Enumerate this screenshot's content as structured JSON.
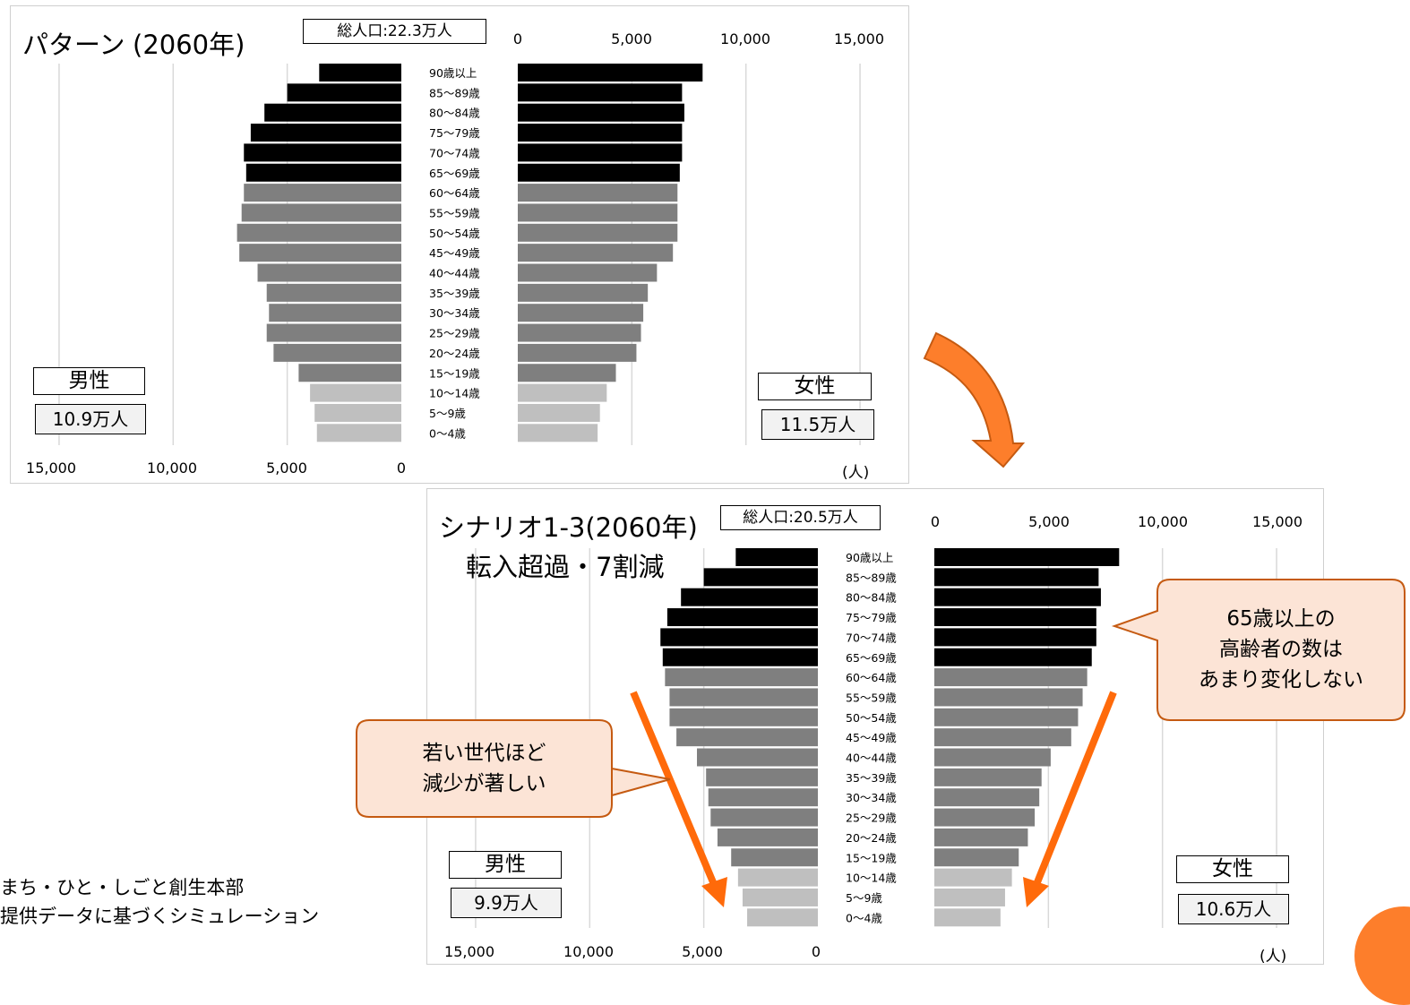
{
  "top_panel": {
    "title_main": "パターン",
    "title_year": "(2060年)",
    "total_population": "総人口:22.3万人",
    "male_label": "男性",
    "male_total": "10.9万人",
    "female_label": "女性",
    "female_total": "11.5万人",
    "unit": "(人)",
    "top_ticks": [
      "0",
      "5,000",
      "10,000",
      "15,000"
    ],
    "bottom_ticks": [
      "15,000",
      "10,000",
      "5,000",
      "0"
    ]
  },
  "bottom_panel": {
    "title_main": "シナリオ1-3(2060年)",
    "subtitle": "転入超過・7割減",
    "total_population": "総人口:20.5万人",
    "male_label": "男性",
    "male_total": "9.9万人",
    "female_label": "女性",
    "female_total": "10.6万人",
    "unit": "(人)",
    "top_ticks": [
      "0",
      "5,000",
      "10,000",
      "15,000"
    ],
    "bottom_ticks": [
      "15,000",
      "10,000",
      "5,000",
      "0"
    ]
  },
  "callouts": {
    "young": [
      "若い世代ほど",
      "減少が著しい"
    ],
    "elderly": [
      "65歳以上の",
      "高齢者の数は",
      "あまり変化しない"
    ]
  },
  "source_note": [
    "まち・ひと・しごと創生本部",
    "提供データに基づくシミュレーション"
  ],
  "colors": {
    "elderly_bar": "#000000",
    "working_bar": "#7f7f7f",
    "child_bar": "#bfbfbf",
    "accent_orange": "#fd7e2b",
    "callout_fill": "#fce4d6",
    "callout_border": "#c55a11"
  },
  "chart_data": [
    {
      "type": "bar",
      "orientation": "horizontal",
      "title": "パターン (2060年)",
      "categories": [
        "90歳以上",
        "85～89歳",
        "80～84歳",
        "75～79歳",
        "70～74歳",
        "65～69歳",
        "60～64歳",
        "55～59歳",
        "50～54歳",
        "45～49歳",
        "40～44歳",
        "35～39歳",
        "30～34歳",
        "25～29歳",
        "20～24歳",
        "15～19歳",
        "10～14歳",
        "5～9歳",
        "0～4歳"
      ],
      "series": [
        {
          "name": "男性",
          "values": [
            3600,
            5000,
            6000,
            6600,
            6900,
            6800,
            6900,
            7000,
            7200,
            7100,
            6300,
            5900,
            5800,
            5900,
            5600,
            4500,
            4000,
            3800,
            3700
          ]
        },
        {
          "name": "女性",
          "values": [
            8100,
            7200,
            7300,
            7200,
            7200,
            7100,
            7000,
            7000,
            7000,
            6800,
            6100,
            5700,
            5500,
            5400,
            5200,
            4300,
            3900,
            3600,
            3500
          ]
        }
      ],
      "xlim": [
        0,
        15000
      ],
      "unit": "(人)"
    },
    {
      "type": "bar",
      "orientation": "horizontal",
      "title": "シナリオ1-3(2060年)",
      "categories": [
        "90歳以上",
        "85～89歳",
        "80～84歳",
        "75～79歳",
        "70～74歳",
        "65～69歳",
        "60～64歳",
        "55～59歳",
        "50～54歳",
        "45～49歳",
        "40～44歳",
        "35～39歳",
        "30～34歳",
        "25～29歳",
        "20～24歳",
        "15～19歳",
        "10～14歳",
        "5～9歳",
        "0～4歳"
      ],
      "series": [
        {
          "name": "男性",
          "values": [
            3600,
            5000,
            6000,
            6600,
            6900,
            6800,
            6700,
            6500,
            6500,
            6200,
            5300,
            4900,
            4800,
            4700,
            4400,
            3800,
            3500,
            3300,
            3100
          ]
        },
        {
          "name": "女性",
          "values": [
            8100,
            7200,
            7300,
            7100,
            7100,
            6900,
            6700,
            6500,
            6300,
            6000,
            5100,
            4700,
            4600,
            4400,
            4100,
            3700,
            3400,
            3100,
            2900
          ]
        }
      ],
      "xlim": [
        0,
        15000
      ],
      "unit": "(人)"
    }
  ]
}
